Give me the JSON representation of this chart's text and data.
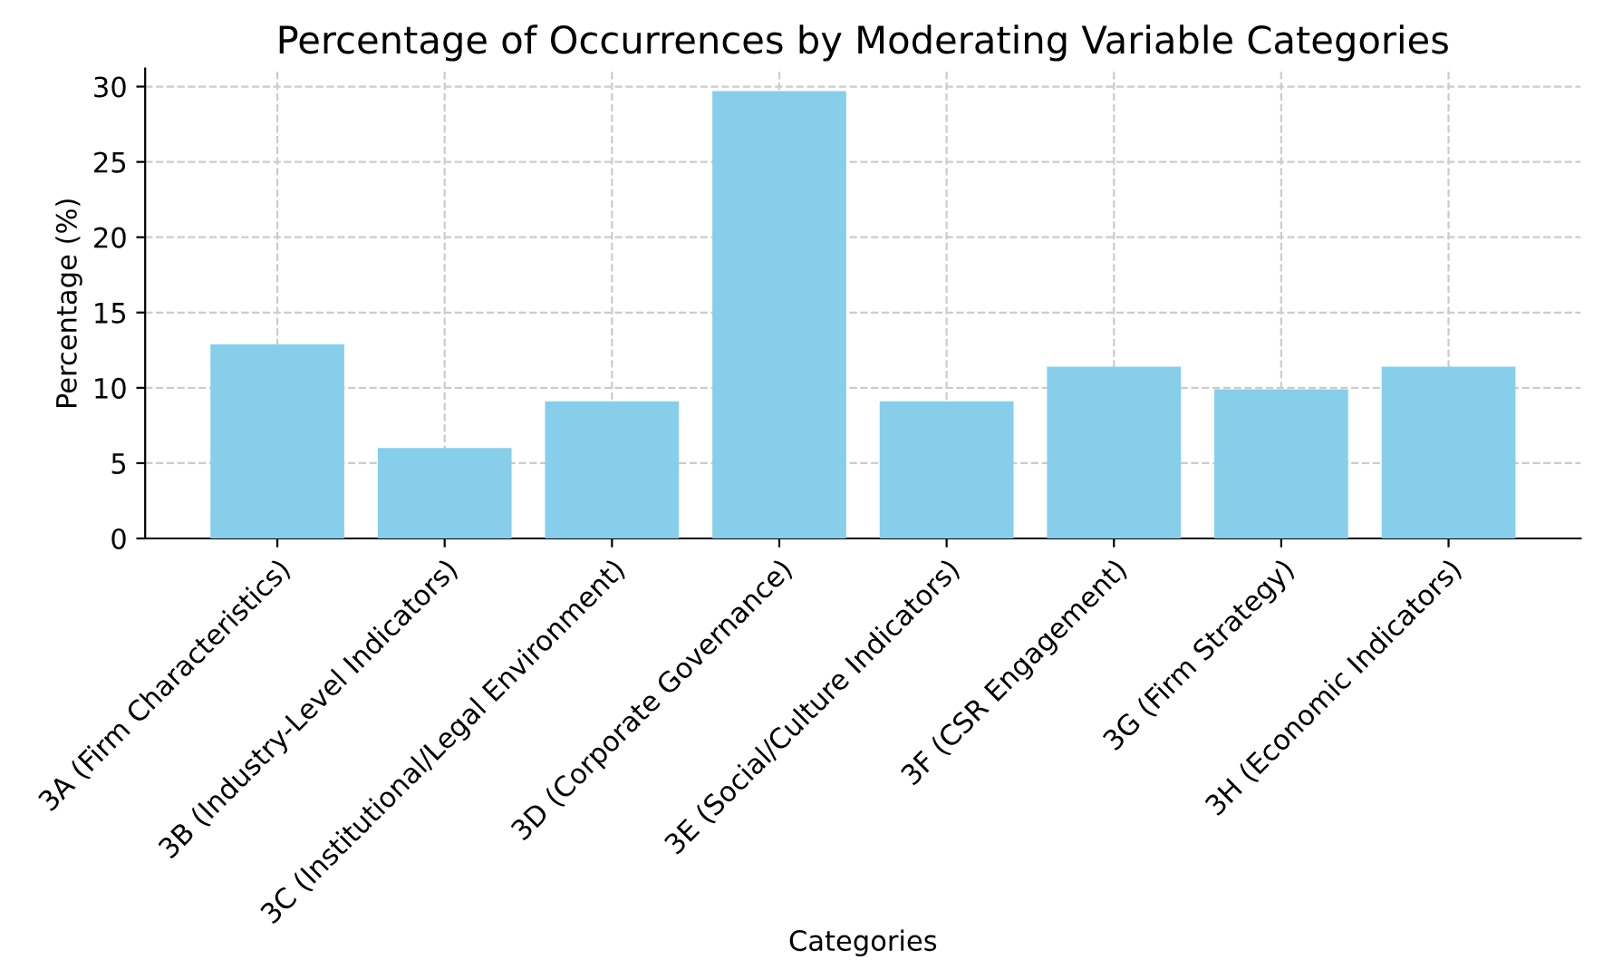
{
  "chart_data": {
    "type": "bar",
    "title": "Percentage of Occurrences by Moderating Variable Categories",
    "xlabel": "Categories",
    "ylabel": "Percentage (%)",
    "categories": [
      "3A (Firm Characteristics)",
      "3B (Industry-Level Indicators)",
      "3C (Institutional/Legal Environment)",
      "3D (Corporate Governance)",
      "3E (Social/Culture Indicators)",
      "3F (CSR Engagement)",
      "3G (Firm Strategy)",
      "3H (Economic Indicators)"
    ],
    "values": [
      12.9,
      6.0,
      9.1,
      29.7,
      9.1,
      11.4,
      9.9,
      11.4
    ],
    "color": "#87ceeb",
    "ylim": [
      0,
      31.2
    ],
    "yticks": [
      0,
      5,
      10,
      15,
      20,
      25,
      30
    ],
    "grid": true
  }
}
